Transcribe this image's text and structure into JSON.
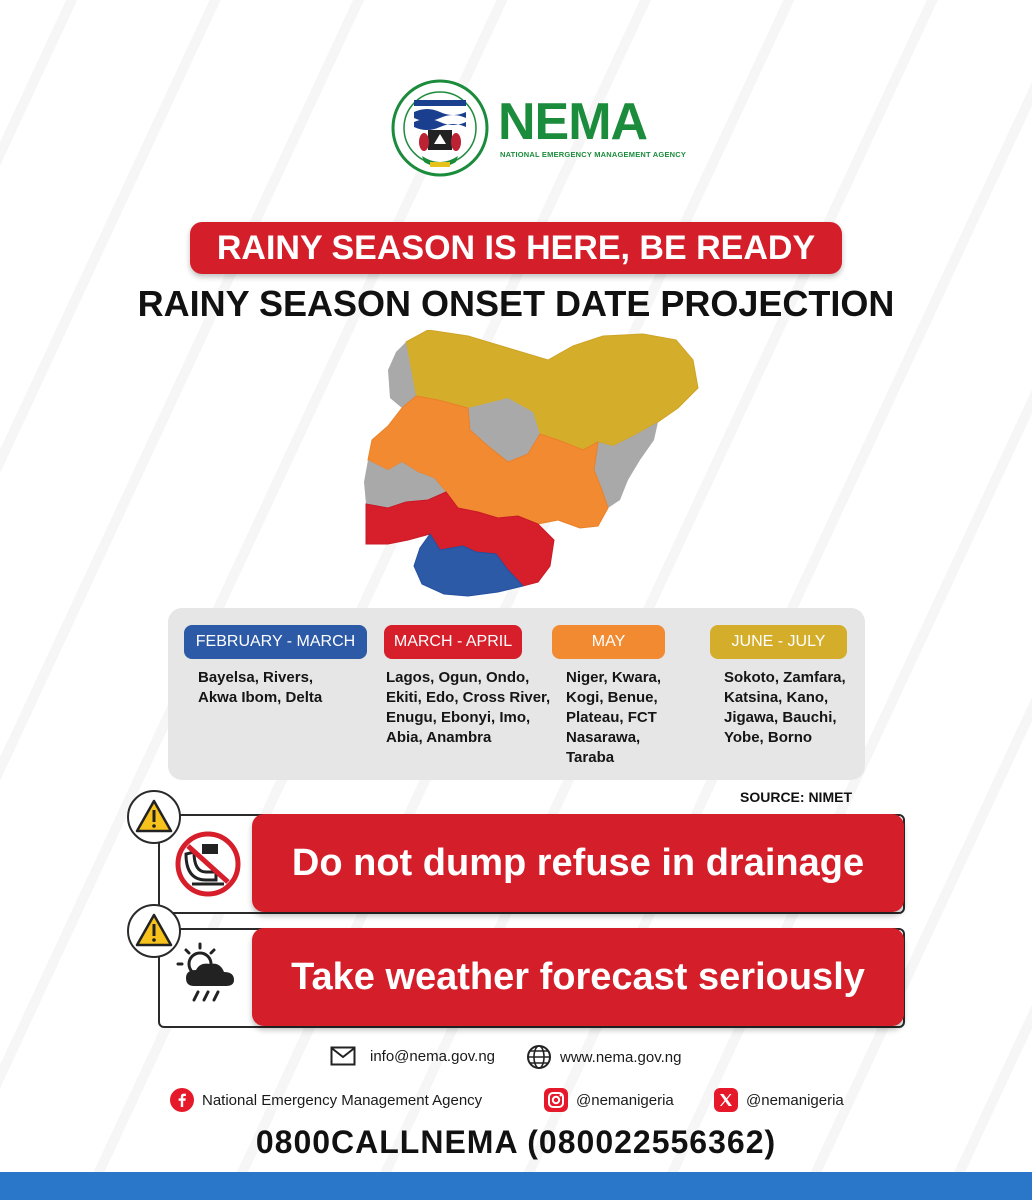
{
  "header": {
    "brand_name": "NEMA",
    "brand_subtitle": "NATIONAL EMERGENCY MANAGEMENT AGENCY",
    "seal_text": "NATIONAL EMERGENCY MANAGEMENT AGENCY"
  },
  "headline": "RAINY SEASON IS HERE, BE READY",
  "subheadline": "RAINY SEASON ONSET DATE PROJECTION",
  "map": {
    "regions": [
      {
        "name": "north",
        "period": "JUNE - JULY",
        "color": "#d4ad2a"
      },
      {
        "name": "middle-belt",
        "period": "MAY",
        "color": "#f28a32"
      },
      {
        "name": "south-west-east",
        "period": "MARCH - APRIL",
        "color": "#d61f2b"
      },
      {
        "name": "niger-delta",
        "period": "FEBRUARY -  MARCH",
        "color": "#2d5aa7"
      },
      {
        "name": "unclassified",
        "period": "",
        "color": "#a9a9a9"
      }
    ]
  },
  "legend": [
    {
      "period": "FEBRUARY -  MARCH",
      "color": "#2d5aa7",
      "states": "Bayelsa, Rivers,\nAkwa Ibom, Delta"
    },
    {
      "period": "MARCH - APRIL",
      "color": "#d61f2b",
      "states": "Lagos, Ogun, Ondo,\nEkiti, Edo, Cross River,\nEnugu, Ebonyi, Imo,\nAbia, Anambra"
    },
    {
      "period": "MAY",
      "color": "#f28a32",
      "states": "Niger, Kwara,\nKogi, Benue,\nPlateau, FCT\nNasarawa,\nTaraba"
    },
    {
      "period": "JUNE - JULY",
      "color": "#d4ad2a",
      "states": "Sokoto, Zamfara,\nKatsina, Kano,\nJigawa, Bauchi,\nYobe, Borno"
    }
  ],
  "source": "SOURCE: NIMET",
  "warnings": [
    {
      "text": "Do not dump refuse in drainage",
      "icon": "no-dumping-icon"
    },
    {
      "text": "Take weather forecast seriously",
      "icon": "weather-rain-icon"
    }
  ],
  "contacts": {
    "email": "info@nema.gov.ng",
    "website": "www.nema.gov.ng",
    "facebook": "National Emergency Management Agency",
    "instagram": "@nemanigeria",
    "x": "@nemanigeria",
    "phone": "0800CALLNEMA (080022556362)"
  }
}
